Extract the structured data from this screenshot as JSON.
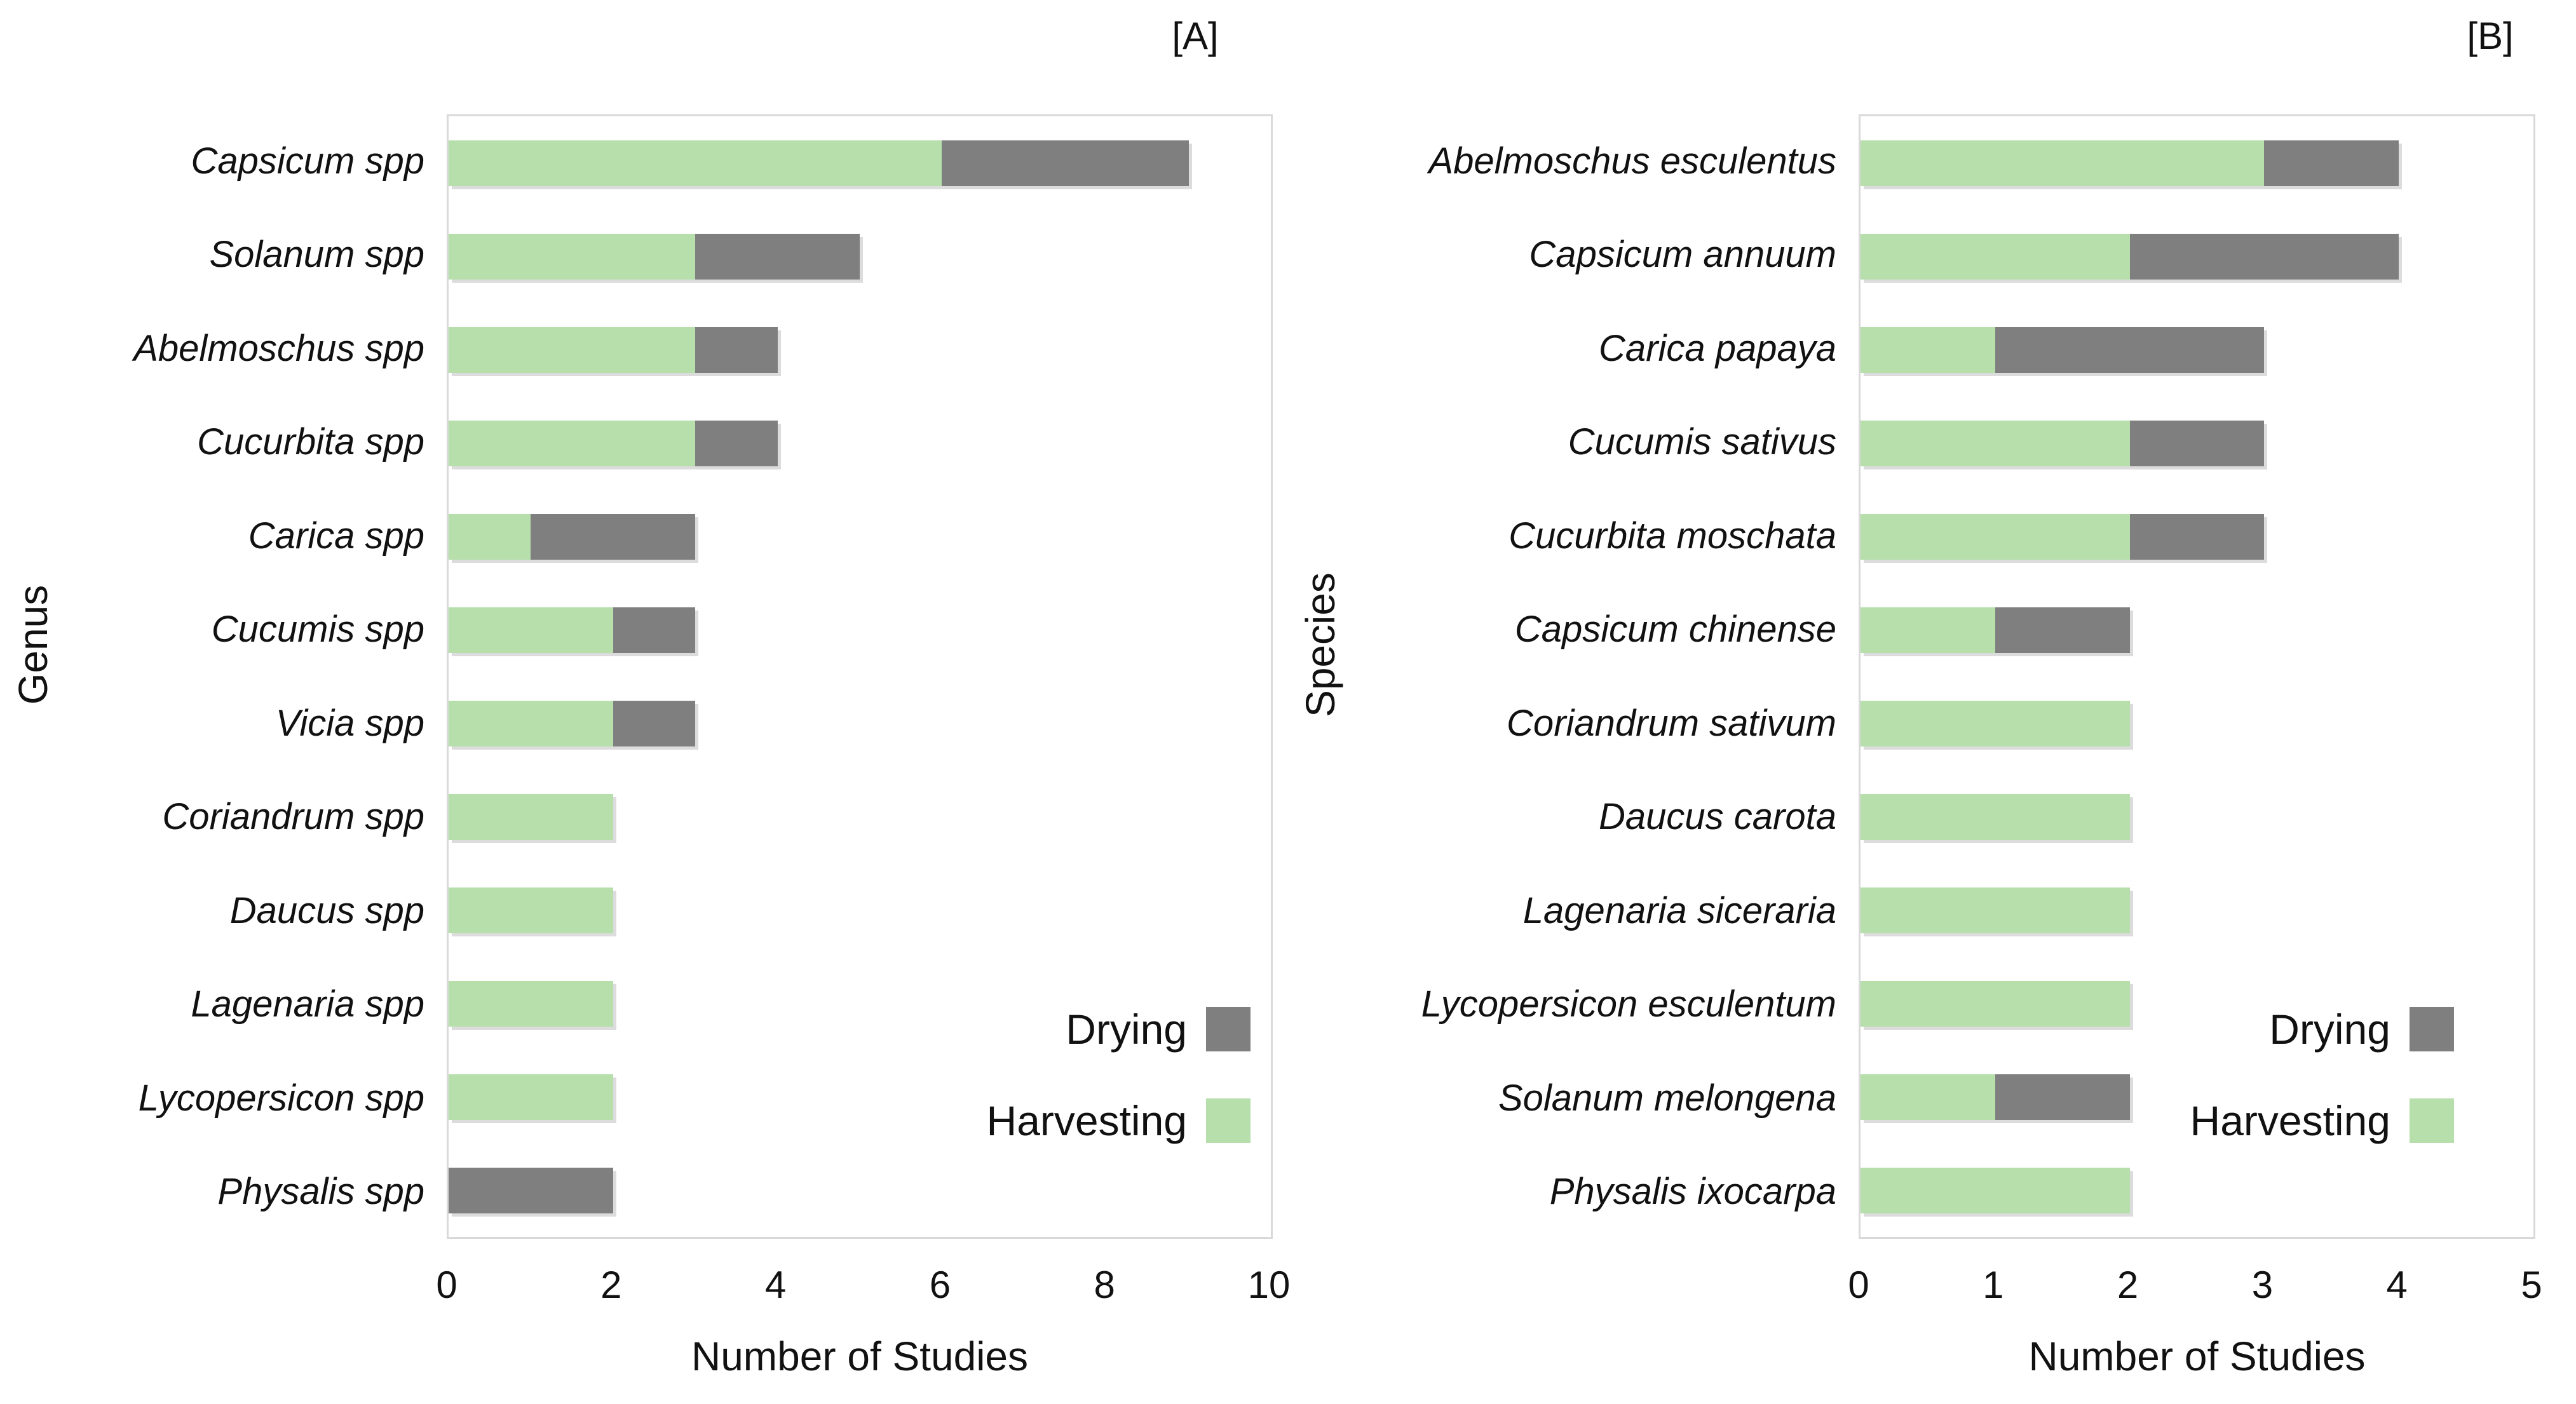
{
  "colors": {
    "harvesting": "#B6DFAC",
    "drying": "#7F7F7F",
    "plot_border": "#D9D9D9"
  },
  "chart_data": [
    {
      "type": "bar",
      "orientation": "horizontal",
      "stacked": true,
      "title": "[A]",
      "ylabel": "Genus",
      "xlabel": "Number of Studies",
      "xlim": [
        0,
        10
      ],
      "xticks": [
        0,
        2,
        4,
        6,
        8,
        10
      ],
      "grid": false,
      "legend_position": "lower-right-inside",
      "categories": [
        "Capsicum spp",
        "Solanum spp",
        "Abelmoschus spp",
        "Cucurbita spp",
        "Carica spp",
        "Cucumis spp",
        "Vicia spp",
        "Coriandrum spp",
        "Daucus spp",
        "Lagenaria spp",
        "Lycopersicon spp",
        "Physalis spp"
      ],
      "series": [
        {
          "name": "Harvesting",
          "color_key": "harvesting",
          "values": [
            6,
            3,
            3,
            3,
            1,
            2,
            2,
            2,
            2,
            2,
            2,
            0
          ]
        },
        {
          "name": "Drying",
          "color_key": "drying",
          "values": [
            3,
            2,
            1,
            1,
            2,
            1,
            1,
            0,
            0,
            0,
            0,
            2
          ]
        }
      ],
      "totals": [
        9,
        5,
        4,
        4,
        3,
        3,
        3,
        2,
        2,
        2,
        2,
        2
      ],
      "legend": [
        {
          "label": "Drying",
          "color_key": "drying"
        },
        {
          "label": "Harvesting",
          "color_key": "harvesting"
        }
      ]
    },
    {
      "type": "bar",
      "orientation": "horizontal",
      "stacked": true,
      "title": "[B]",
      "ylabel": "Species",
      "xlabel": "Number of Studies",
      "xlim": [
        0,
        5
      ],
      "xticks": [
        0,
        1,
        2,
        3,
        4,
        5
      ],
      "grid": false,
      "legend_position": "lower-right-inside",
      "categories": [
        "Abelmoschus esculentus",
        "Capsicum annuum",
        "Carica papaya",
        "Cucumis sativus",
        "Cucurbita moschata",
        "Capsicum chinense",
        "Coriandrum sativum",
        "Daucus carota",
        "Lagenaria siceraria",
        "Lycopersicon esculentum",
        "Solanum melongena",
        "Physalis ixocarpa"
      ],
      "series": [
        {
          "name": "Harvesting",
          "color_key": "harvesting",
          "values": [
            3,
            2,
            1,
            2,
            2,
            1,
            2,
            2,
            2,
            2,
            1,
            2
          ]
        },
        {
          "name": "Drying",
          "color_key": "drying",
          "values": [
            1,
            2,
            2,
            1,
            1,
            1,
            0,
            0,
            0,
            0,
            1,
            0
          ]
        }
      ],
      "totals": [
        4,
        4,
        3,
        3,
        3,
        2,
        2,
        2,
        2,
        2,
        2,
        2
      ],
      "legend": [
        {
          "label": "Drying",
          "color_key": "drying"
        },
        {
          "label": "Harvesting",
          "color_key": "harvesting"
        }
      ]
    }
  ]
}
